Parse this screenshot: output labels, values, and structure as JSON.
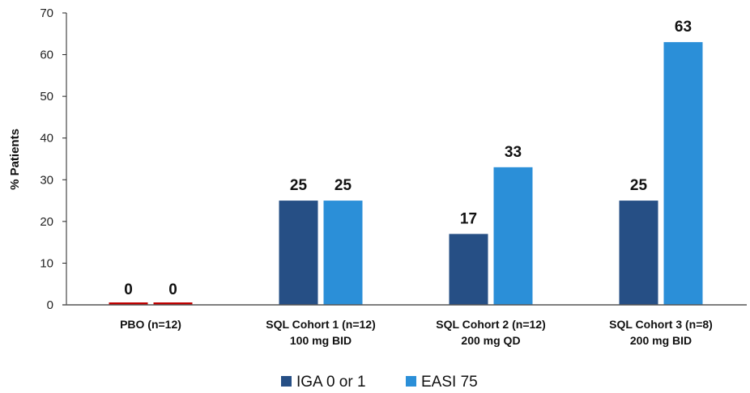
{
  "chart_data": {
    "type": "bar",
    "title": "",
    "xlabel": "",
    "ylabel": "% Patients",
    "ylim": [
      0,
      70
    ],
    "yticks": [
      0,
      10,
      20,
      30,
      40,
      50,
      60,
      70
    ],
    "grid": false,
    "legend_position": "bottom-center",
    "categories": [
      [
        "PBO (n=12)"
      ],
      [
        "SQL Cohort 1 (n=12)",
        "100 mg BID"
      ],
      [
        "SQL Cohort 2 (n=12)",
        "200 mg QD"
      ],
      [
        "SQL Cohort 3 (n=8)",
        "200 mg BID"
      ]
    ],
    "series": [
      {
        "name": "IGA 0 or 1",
        "color": "#264f85",
        "values": [
          0,
          25,
          17,
          25
        ]
      },
      {
        "name": "EASI 75",
        "color": "#2b8fd8",
        "values": [
          0,
          25,
          33,
          63
        ]
      }
    ],
    "zero_bar_color": "#c00000"
  }
}
